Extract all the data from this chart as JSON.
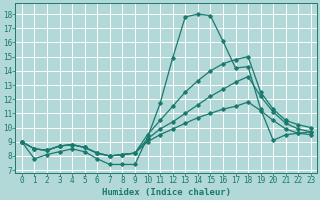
{
  "xlabel": "Humidex (Indice chaleur)",
  "ylabel": "",
  "xlim": [
    -0.5,
    23.5
  ],
  "ylim": [
    6.8,
    18.8
  ],
  "xticks": [
    0,
    1,
    2,
    3,
    4,
    5,
    6,
    7,
    8,
    9,
    10,
    11,
    12,
    13,
    14,
    15,
    16,
    17,
    18,
    19,
    20,
    21,
    22,
    23
  ],
  "yticks": [
    7,
    8,
    9,
    10,
    11,
    12,
    13,
    14,
    15,
    16,
    17,
    18
  ],
  "bg_color": "#b2d8d8",
  "line_color": "#1a7a6e",
  "grid_color": "#ffffff",
  "lines": [
    {
      "x": [
        0,
        1,
        2,
        3,
        4,
        5,
        6,
        7,
        8,
        9,
        10,
        11,
        12,
        13,
        14,
        15,
        16,
        17,
        18,
        19,
        20,
        21,
        22,
        23
      ],
      "y": [
        9,
        7.8,
        8.1,
        8.3,
        8.5,
        8.3,
        7.8,
        7.4,
        7.4,
        7.4,
        9.3,
        11.7,
        14.9,
        17.8,
        18.0,
        17.9,
        16.1,
        14.2,
        14.3,
        11.3,
        9.1,
        9.5,
        9.6,
        9.7
      ]
    },
    {
      "x": [
        0,
        1,
        2,
        3,
        4,
        5,
        6,
        7,
        8,
        9,
        10,
        11,
        12,
        13,
        14,
        15,
        16,
        17,
        18,
        19,
        20,
        21,
        22,
        23
      ],
      "y": [
        9,
        8.5,
        8.4,
        8.7,
        8.8,
        8.6,
        8.2,
        8.0,
        8.1,
        8.2,
        9.5,
        10.5,
        11.5,
        12.5,
        13.3,
        14.0,
        14.5,
        14.8,
        15.0,
        12.5,
        11.3,
        10.5,
        10.2,
        10.0
      ]
    },
    {
      "x": [
        0,
        1,
        2,
        3,
        4,
        5,
        6,
        7,
        8,
        9,
        10,
        11,
        12,
        13,
        14,
        15,
        16,
        17,
        18,
        19,
        20,
        21,
        22,
        23
      ],
      "y": [
        9,
        8.5,
        8.4,
        8.7,
        8.8,
        8.6,
        8.2,
        8.0,
        8.1,
        8.2,
        9.2,
        9.9,
        10.4,
        11.0,
        11.6,
        12.2,
        12.7,
        13.2,
        13.6,
        12.2,
        11.1,
        10.3,
        9.9,
        9.7
      ]
    },
    {
      "x": [
        0,
        1,
        2,
        3,
        4,
        5,
        6,
        7,
        8,
        9,
        10,
        11,
        12,
        13,
        14,
        15,
        16,
        17,
        18,
        19,
        20,
        21,
        22,
        23
      ],
      "y": [
        9,
        8.5,
        8.4,
        8.7,
        8.8,
        8.6,
        8.2,
        8.0,
        8.1,
        8.2,
        9.0,
        9.5,
        9.9,
        10.3,
        10.7,
        11.0,
        11.3,
        11.5,
        11.8,
        11.2,
        10.5,
        9.9,
        9.6,
        9.5
      ]
    }
  ],
  "figsize": [
    3.2,
    2.0
  ],
  "dpi": 100,
  "tick_fontsize": 5.5,
  "xlabel_fontsize": 6.5,
  "linewidth": 0.9,
  "markersize": 1.8
}
